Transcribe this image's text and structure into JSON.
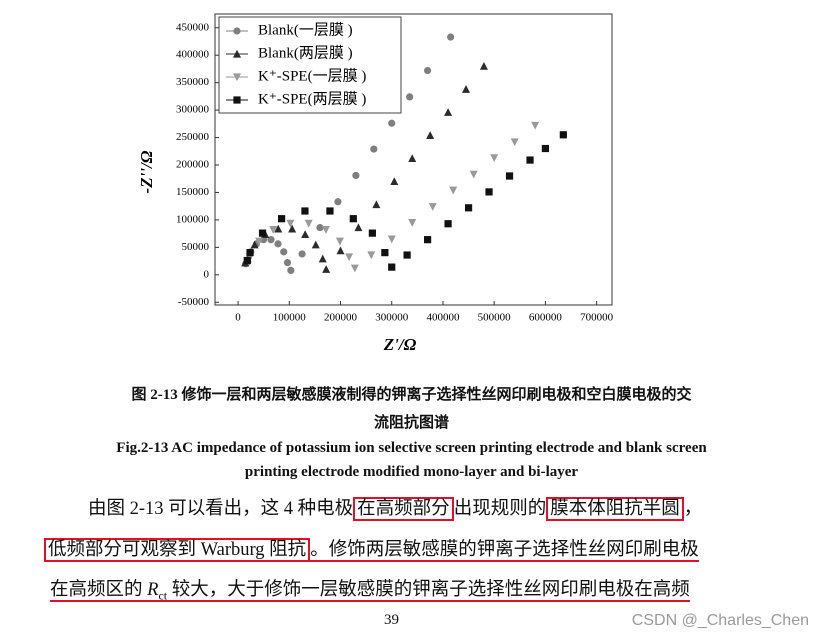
{
  "chart_data": {
    "type": "scatter",
    "x_label": "Z'/Ω",
    "y_label": "-Z''/Ω",
    "xlim": [
      -45000,
      730000
    ],
    "ylim": [
      -55000,
      475000
    ],
    "xticks": [
      0,
      100000,
      200000,
      300000,
      400000,
      500000,
      600000,
      700000
    ],
    "yticks": [
      -50000,
      0,
      50000,
      100000,
      150000,
      200000,
      250000,
      300000,
      350000,
      400000,
      450000
    ],
    "legend": "upper-left",
    "series": [
      {
        "name": "Blank(一层膜 )",
        "marker": "circle",
        "color": "#7f7f7f",
        "x": [
          15000,
          17500,
          24800,
          36000,
          49700,
          64300,
          78000,
          89200,
          96500,
          103000,
          125000,
          160000,
          195000,
          230000,
          265000,
          300000,
          335000,
          370000,
          415000
        ],
        "values": [
          20000,
          22200,
          41800,
          56300,
          64000,
          64000,
          56300,
          41800,
          22200,
          8000,
          38000,
          86000,
          133000,
          181000,
          229000,
          276000,
          324000,
          372000,
          433000
        ]
      },
      {
        "name": "Blank(两层膜 )",
        "marker": "triangle-up",
        "color": "#2b2b2b",
        "x": [
          14000,
          18700,
          32300,
          53000,
          78400,
          105600,
          131000,
          151700,
          165300,
          172000,
          200000,
          235000,
          270000,
          305000,
          340000,
          375000,
          410000,
          445000,
          480000
        ],
        "values": [
          22000,
          29100,
          54700,
          73600,
          83700,
          83700,
          73600,
          54700,
          29100,
          10000,
          44000,
          86000,
          128000,
          170000,
          212000,
          254000,
          296000,
          338000,
          380000
        ]
      },
      {
        "name": "K⁺-SPE(一层膜 )",
        "marker": "triangle-down",
        "color": "#9a9a9a",
        "x": [
          20000,
          23200,
          41100,
          68500,
          102100,
          137900,
          171500,
          198900,
          216800,
          228000,
          260000,
          300000,
          340000,
          380000,
          420000,
          460000,
          500000,
          540000,
          580000
        ],
        "values": [
          25000,
          32500,
          61100,
          82300,
          93600,
          93600,
          82300,
          61100,
          32500,
          12000,
          36000,
          65000,
          95000,
          124000,
          154000,
          183000,
          213000,
          242000,
          272000
        ]
      },
      {
        "name": "K⁺-SPE(两层膜 )",
        "marker": "square",
        "color": "#111111",
        "x": [
          18000,
          23400,
          47800,
          85000,
          130600,
          179400,
          225000,
          262200,
          286600,
          300000,
          330000,
          370000,
          410000,
          450000,
          490000,
          530000,
          570000,
          600000,
          635000
        ],
        "values": [
          26000,
          40400,
          75900,
          102200,
          116200,
          116200,
          102200,
          75900,
          40400,
          14000,
          36000,
          64000,
          93000,
          122000,
          151000,
          180000,
          209000,
          230000,
          255000
        ]
      }
    ]
  },
  "caption_cn": [
    "图 2-13  修饰一层和两层敏感膜液制得的钾离子选择性丝网印刷电极和空白膜电极的交",
    "流阻抗图谱"
  ],
  "caption_en": [
    "Fig.2-13 AC impedance of potassium ion selective screen printing electrode and blank screen",
    "printing electrode modified mono-layer and bi-layer"
  ],
  "body": [
    [
      "由图 2-13 可以看出，这 4 种电极",
      "在高频部分",
      "出现规则的",
      "膜本体阻抗半圆",
      "，"
    ],
    [
      "低频部分可观察到 Warburg 阻抗",
      "。修饰两层敏感膜的钾离子选择性丝网印刷电极"
    ],
    [
      "在高频区的 ",
      "R",
      "ct",
      " 较大，大于修饰一层敏感膜的钾离子选择性丝网印刷电极在高频"
    ]
  ],
  "page_number": "39",
  "watermark": "CSDN @_Charles_Chen"
}
